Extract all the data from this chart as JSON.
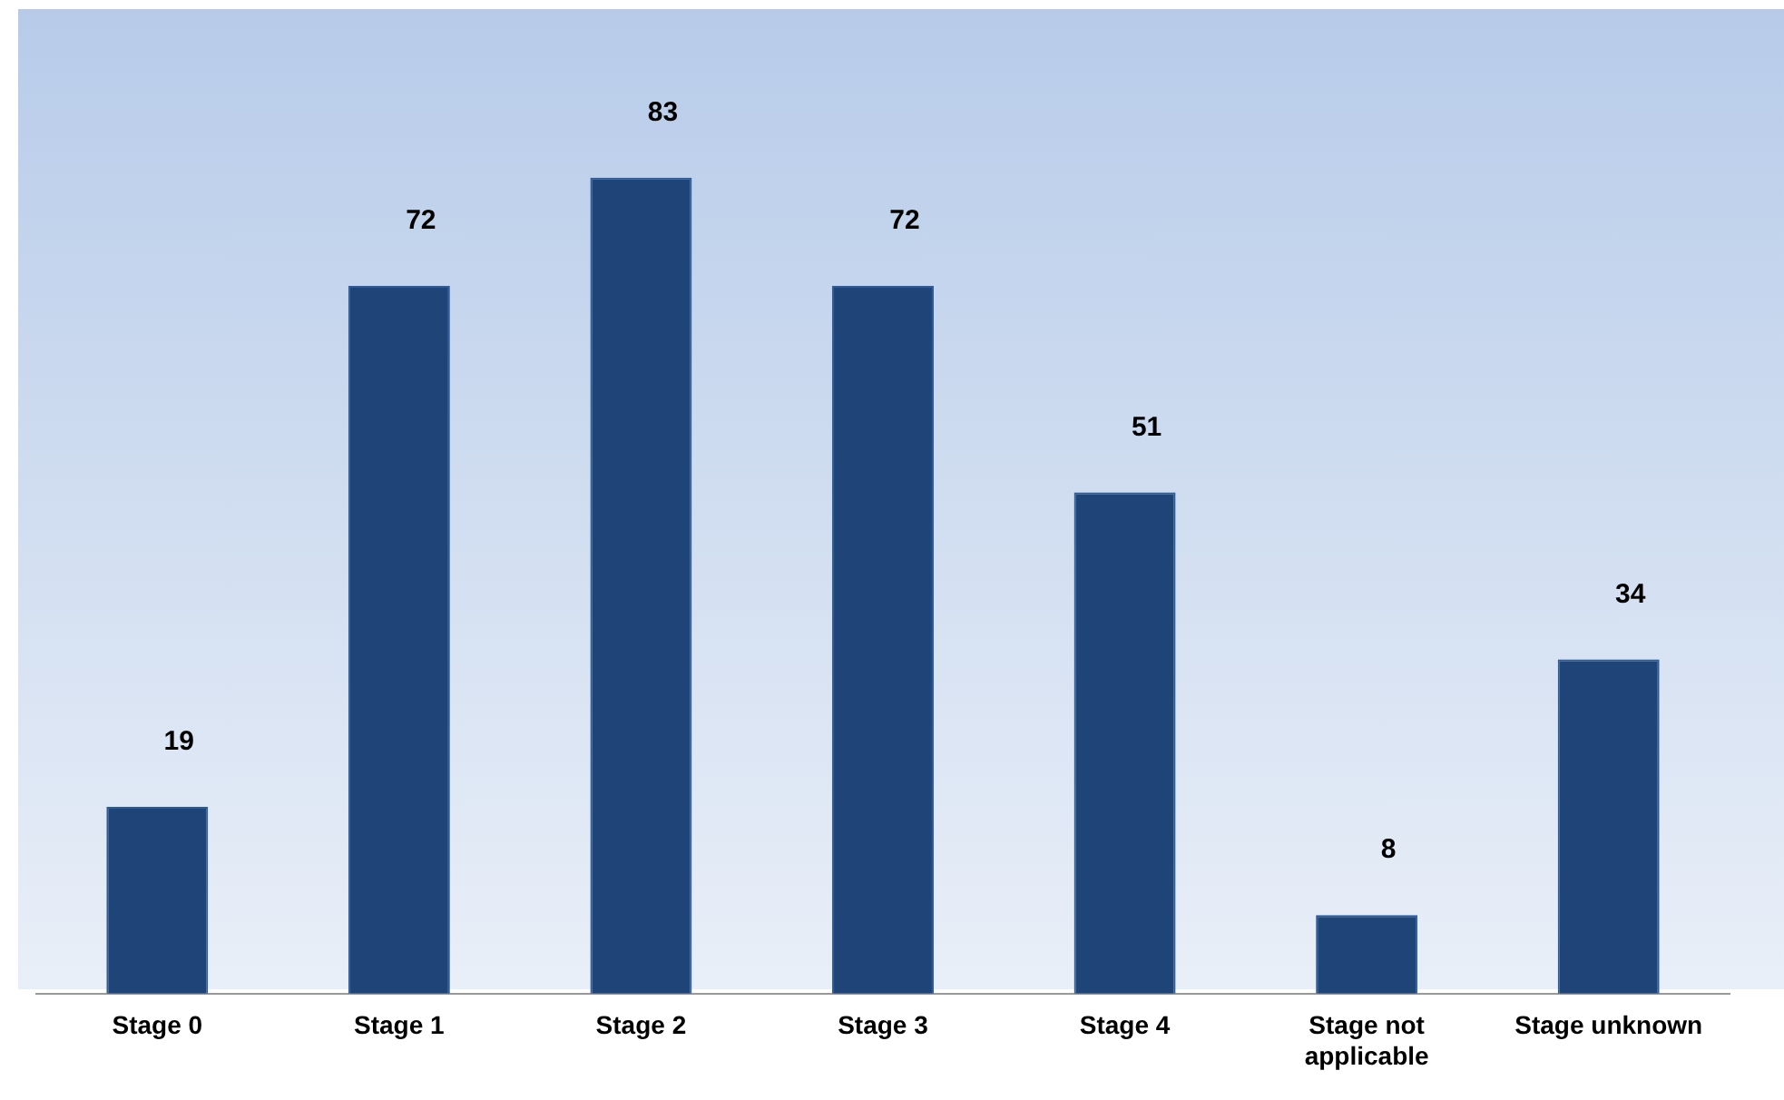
{
  "chart_data": {
    "type": "bar",
    "categories": [
      "Stage 0",
      "Stage 1",
      "Stage 2",
      "Stage 3",
      "Stage 4",
      "Stage not applicable",
      "Stage unknown"
    ],
    "values": [
      19,
      72,
      83,
      72,
      51,
      8,
      34
    ],
    "color": "#1f4477",
    "data_labels": true,
    "grid": false,
    "legend": false
  }
}
